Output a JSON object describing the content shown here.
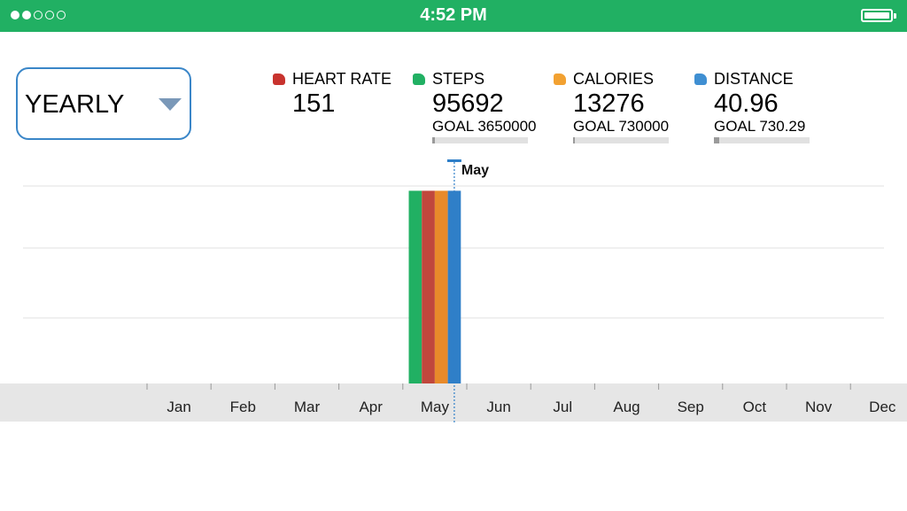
{
  "status_bar": {
    "time": "4:52 PM",
    "signal_filled": 2,
    "signal_total": 5,
    "battery_level": 1.0
  },
  "period_select": {
    "selected": "YEARLY"
  },
  "metrics": [
    {
      "key": "heart",
      "label": "HEART RATE",
      "value": "151",
      "goal": null,
      "progress": null,
      "color": "#c8332e"
    },
    {
      "key": "steps",
      "label": "STEPS",
      "value": "95692",
      "goal": "GOAL 3650000",
      "progress": 0.026,
      "color": "#21b063"
    },
    {
      "key": "calories",
      "label": "CALORIES",
      "value": "13276",
      "goal": "GOAL 730000",
      "progress": 0.018,
      "color": "#f2a131"
    },
    {
      "key": "distance",
      "label": "DISTANCE",
      "value": "40.96",
      "goal": "GOAL 730.29",
      "progress": 0.056,
      "color": "#3f8fd2"
    }
  ],
  "chart_data": {
    "type": "bar",
    "categories": [
      "Jan",
      "Feb",
      "Mar",
      "Apr",
      "May",
      "Jun",
      "Jul",
      "Aug",
      "Sep",
      "Oct",
      "Nov",
      "Dec"
    ],
    "series": [
      {
        "name": "STEPS",
        "color": "#21b063",
        "values": [
          0,
          0,
          0,
          0,
          1,
          0,
          0,
          0,
          0,
          0,
          0,
          0
        ]
      },
      {
        "name": "HEART RATE",
        "color": "#c0473c",
        "values": [
          0,
          0,
          0,
          0,
          1,
          0,
          0,
          0,
          0,
          0,
          0,
          0
        ]
      },
      {
        "name": "CALORIES",
        "color": "#e88a2a",
        "values": [
          0,
          0,
          0,
          0,
          1,
          0,
          0,
          0,
          0,
          0,
          0,
          0
        ]
      },
      {
        "name": "DISTANCE",
        "color": "#2f7fc8",
        "values": [
          0,
          0,
          0,
          0,
          1,
          0,
          0,
          0,
          0,
          0,
          0,
          0
        ]
      }
    ],
    "ylim": [
      0,
      1.08
    ],
    "grid": true,
    "selected_label": "May"
  }
}
